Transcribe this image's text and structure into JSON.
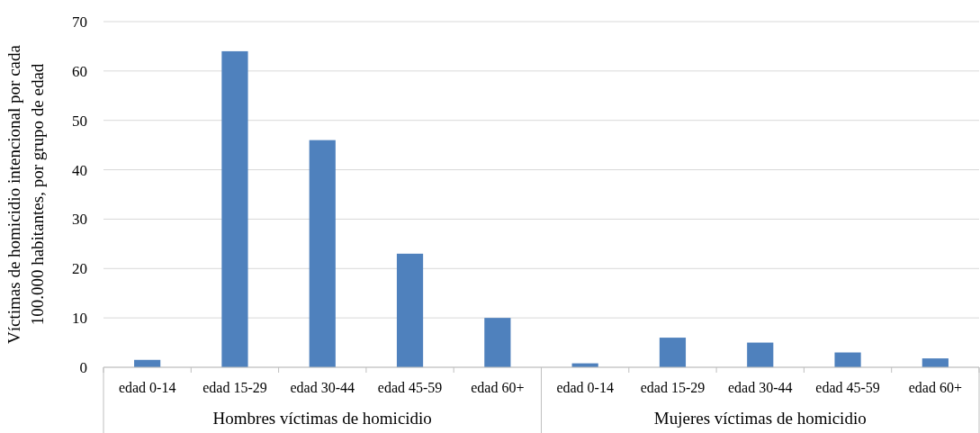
{
  "chart_data": {
    "type": "bar",
    "ylabel": "Víctimas de homicidio intencional por cada\n100.000 habitantes, por grupo de edad",
    "categories": [
      "edad 0-14",
      "edad 15-29",
      "edad 30-44",
      "edad 45-59",
      "edad 60+",
      "edad 0-14",
      "edad 15-29",
      "edad 30-44",
      "edad 45-59",
      "edad 60+"
    ],
    "values": [
      1.5,
      64,
      46,
      23,
      10,
      0.8,
      6,
      5,
      3,
      1.8
    ],
    "color": "#4f81bd",
    "ylim": [
      0,
      70
    ],
    "yticks": [
      0,
      10,
      20,
      30,
      40,
      50,
      60,
      70
    ],
    "grid": "y",
    "annotations": [
      "Hombres víctimas de homicidio",
      "Mujeres víctimas de homicidio"
    ]
  }
}
